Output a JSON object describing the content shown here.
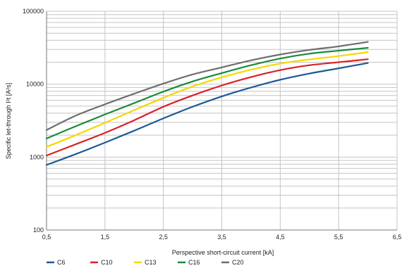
{
  "chart_data": {
    "type": "line",
    "title": "",
    "xlabel": "Perspective short-circuit current [kA]",
    "ylabel": "Specific let-through I²t [A²s]",
    "xlim": [
      0.5,
      6.5
    ],
    "ylim": [
      100,
      100000
    ],
    "yscale": "log",
    "grid": true,
    "legend_position": "bottom-left",
    "x_ticks": [
      "0,5",
      "1,5",
      "2,5",
      "3,5",
      "4,5",
      "5,5",
      "6,5"
    ],
    "x_tick_values": [
      0.5,
      1.5,
      2.5,
      3.5,
      4.5,
      5.5,
      6.5
    ],
    "y_ticks": [
      "100",
      "1000",
      "10000",
      "100000"
    ],
    "y_tick_values": [
      100,
      1000,
      10000,
      100000
    ],
    "x": [
      0.5,
      1.0,
      1.5,
      2.0,
      2.5,
      3.0,
      3.5,
      4.0,
      4.5,
      5.0,
      5.5,
      6.0
    ],
    "series": [
      {
        "name": "C6",
        "color": "#1b5a96",
        "values": [
          780,
          1100,
          1580,
          2300,
          3400,
          4900,
          6800,
          9000,
          11500,
          14000,
          16500,
          19500
        ]
      },
      {
        "name": "C10",
        "color": "#dc1f26",
        "values": [
          1050,
          1500,
          2150,
          3200,
          4900,
          7000,
          9600,
          12500,
          15600,
          18200,
          20000,
          22000
        ]
      },
      {
        "name": "C13",
        "color": "#f5d800",
        "values": [
          1380,
          2000,
          2950,
          4400,
          6500,
          9300,
          12400,
          15800,
          19200,
          21800,
          24300,
          27500
        ]
      },
      {
        "name": "C16",
        "color": "#1a8a3c",
        "values": [
          1800,
          2650,
          3850,
          5500,
          7900,
          10900,
          14200,
          18200,
          22500,
          26200,
          28800,
          31500
        ]
      },
      {
        "name": "C20",
        "color": "#6e6e6e",
        "values": [
          2350,
          3700,
          5300,
          7400,
          10200,
          13600,
          17000,
          21200,
          25500,
          29500,
          33000,
          38000
        ]
      }
    ]
  }
}
